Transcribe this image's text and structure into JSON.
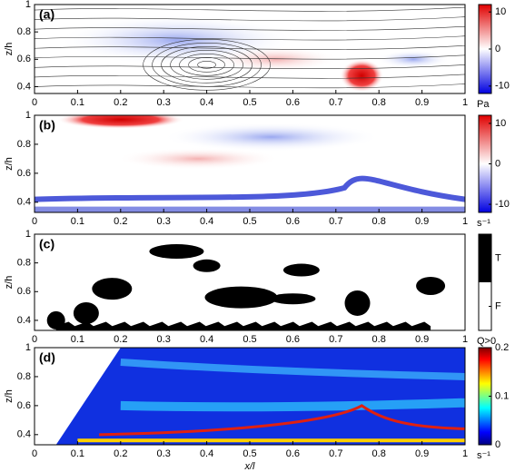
{
  "chart_data": [
    {
      "type": "field",
      "label": "(a)",
      "ylabel": "z/h",
      "xlim": [
        0,
        1
      ],
      "xticks": [
        0,
        0.1,
        0.2,
        0.3,
        0.4,
        0.5,
        0.6,
        0.7,
        0.8,
        0.9,
        1
      ],
      "ylim": [
        0.35,
        1
      ],
      "yticks": [
        0.4,
        0.6,
        0.8,
        1
      ],
      "colormap": "bwr",
      "clim": [
        -12,
        12
      ],
      "cticks": [
        10,
        0,
        -10
      ],
      "cunit": "Pa",
      "streamlines": true
    },
    {
      "type": "field",
      "label": "(b)",
      "ylabel": "z/h",
      "xlim": [
        0,
        1
      ],
      "xticks": [
        0,
        0.1,
        0.2,
        0.3,
        0.4,
        0.5,
        0.6,
        0.7,
        0.8,
        0.9,
        1
      ],
      "ylim": [
        0.33,
        1
      ],
      "yticks": [
        0.4,
        0.6,
        0.8,
        1
      ],
      "colormap": "bwr",
      "clim": [
        -12,
        12
      ],
      "cticks": [
        10,
        0,
        -10
      ],
      "cunit": "s⁻¹"
    },
    {
      "type": "field",
      "label": "(c)",
      "ylabel": "z/h",
      "xlim": [
        0,
        1
      ],
      "xticks": [
        0,
        0.1,
        0.2,
        0.3,
        0.4,
        0.5,
        0.6,
        0.7,
        0.8,
        0.9,
        1
      ],
      "ylim": [
        0.33,
        1
      ],
      "yticks": [
        0.4,
        0.6,
        0.8,
        1
      ],
      "colormap": "binary",
      "clim": [
        0,
        1
      ],
      "cticks": [
        {
          "value": 0.75,
          "label": "T"
        },
        {
          "value": 0.25,
          "label": "F"
        }
      ],
      "cunit": "Q>0"
    },
    {
      "type": "field",
      "label": "(d)",
      "ylabel": "z/h",
      "xlabel": "x/l",
      "xlim": [
        0,
        1
      ],
      "xticks": [
        0,
        0.1,
        0.2,
        0.3,
        0.4,
        0.5,
        0.6,
        0.7,
        0.8,
        0.9,
        1
      ],
      "ylim": [
        0.33,
        1
      ],
      "yticks": [
        0.4,
        0.6,
        0.8,
        1
      ],
      "colormap": "jet",
      "clim": [
        0,
        0.2
      ],
      "cticks": [
        0.2,
        0.1,
        0
      ],
      "cunit": "s⁻¹"
    }
  ]
}
